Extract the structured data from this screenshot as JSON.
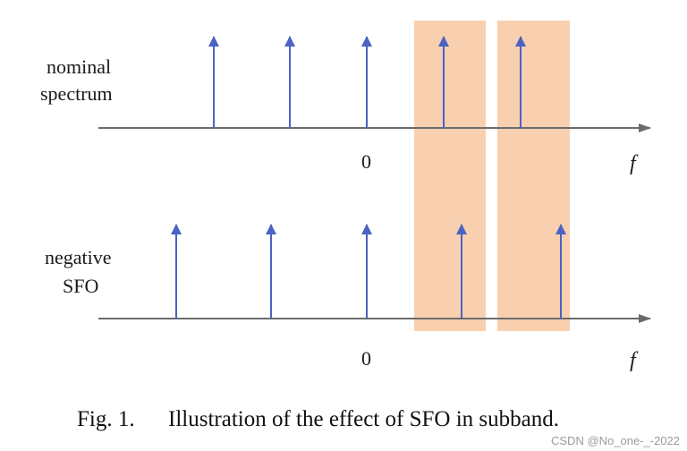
{
  "rows": [
    {
      "label_lines": [
        "nominal",
        "spectrum"
      ],
      "zero_label": "0",
      "axis_label": "f"
    },
    {
      "label_lines": [
        "negative",
        "SFO"
      ],
      "zero_label": "0",
      "axis_label": "f"
    }
  ],
  "caption": {
    "number": "Fig. 1.",
    "text": "Illustration of the effect of SFO in subband."
  },
  "watermark": "CSDN @No_one-_-2022",
  "colors": {
    "arrow": "#4a63c4",
    "axis": "#6b6b6b",
    "highlight": "#f6c49b"
  }
}
